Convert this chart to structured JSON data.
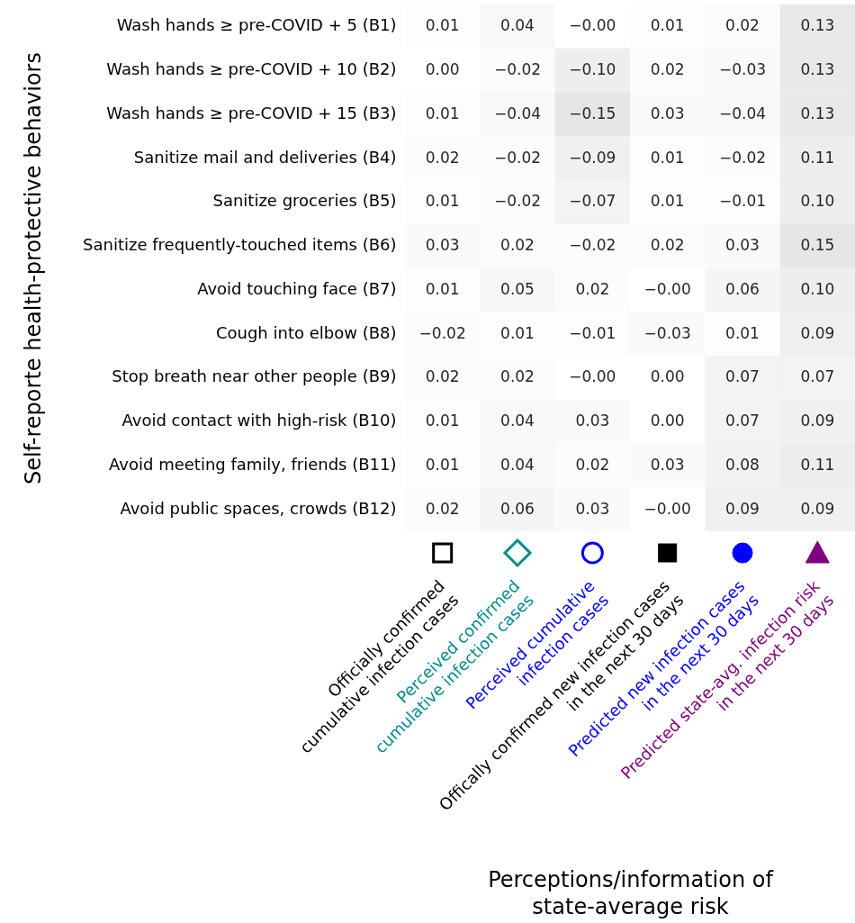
{
  "chart_data": {
    "type": "heatmap",
    "xlabel": "Perceptions/information of\nstate-average risk",
    "ylabel": "Self-reporte health-protective behaviors",
    "categories": [
      "Officially confirmed\ncumulative infection cases",
      "Perceived confirmed\ncumulative infection cases",
      "Perceived cumulative\ninfection cases",
      "Offically confirmed new infection cases\nin the next 30 days",
      "Predicted new infection cases\nin the next 30 days",
      "Predicted state-avg. infection risk\nin the next 30 days"
    ],
    "colors": [
      "#000000",
      "#008b8b",
      "#0000ff",
      "#000000",
      "#0000ff",
      "#800080"
    ],
    "y_categories": [
      "Wash hands ≥ pre-COVID + 5 (B1)",
      "Wash hands ≥ pre-COVID + 10 (B2)",
      "Wash hands ≥ pre-COVID + 15 (B3)",
      "Sanitize mail and deliveries (B4)",
      "Sanitize groceries (B5)",
      "Sanitize frequently-touched items (B6)",
      "Avoid touching face (B7)",
      "Cough into elbow (B8)",
      "Stop breath near other people (B9)",
      "Avoid contact with high-risk (B10)",
      "Avoid meeting family, friends (B11)",
      "Avoid public spaces, crowds (B12)"
    ],
    "cells": [
      [
        0.01,
        0.04,
        0,
        0.01,
        0.02,
        0.13
      ],
      [
        0.0,
        -0.02,
        -0.1,
        0.02,
        -0.03,
        0.13
      ],
      [
        0.01,
        -0.04,
        -0.15,
        0.03,
        -0.04,
        0.13
      ],
      [
        0.02,
        -0.02,
        -0.09,
        0.01,
        -0.02,
        0.11
      ],
      [
        0.01,
        -0.02,
        -0.07,
        0.01,
        -0.01,
        0.1
      ],
      [
        0.03,
        0.02,
        -0.02,
        0.02,
        0.03,
        0.15
      ],
      [
        0.01,
        0.05,
        0.02,
        0,
        0.06,
        0.1
      ],
      [
        -0.02,
        0.01,
        -0.01,
        -0.03,
        0.01,
        0.09
      ],
      [
        0.02,
        0.02,
        0,
        0.0,
        0.07,
        0.07
      ],
      [
        0.01,
        0.04,
        0.03,
        0.0,
        0.07,
        0.09
      ],
      [
        0.01,
        0.04,
        0.02,
        0.03,
        0.08,
        0.11
      ],
      [
        0.02,
        0.06,
        0.03,
        0,
        0.09,
        0.09
      ]
    ],
    "cell_labels": [
      [
        "0.01",
        "0.04",
        "−0.00",
        "0.01",
        "0.02",
        "0.13"
      ],
      [
        "0.00",
        "−0.02",
        "−0.10",
        "0.02",
        "−0.03",
        "0.13"
      ],
      [
        "0.01",
        "−0.04",
        "−0.15",
        "0.03",
        "−0.04",
        "0.13"
      ],
      [
        "0.02",
        "−0.02",
        "−0.09",
        "0.01",
        "−0.02",
        "0.11"
      ],
      [
        "0.01",
        "−0.02",
        "−0.07",
        "0.01",
        "−0.01",
        "0.10"
      ],
      [
        "0.03",
        "0.02",
        "−0.02",
        "0.02",
        "0.03",
        "0.15"
      ],
      [
        "0.01",
        "0.05",
        "0.02",
        "−0.00",
        "0.06",
        "0.10"
      ],
      [
        "−0.02",
        "0.01",
        "−0.01",
        "−0.03",
        "0.01",
        "0.09"
      ],
      [
        "0.02",
        "0.02",
        "−0.00",
        "0.00",
        "0.07",
        "0.07"
      ],
      [
        "0.01",
        "0.04",
        "0.03",
        "0.00",
        "0.07",
        "0.09"
      ],
      [
        "0.01",
        "0.04",
        "0.02",
        "0.03",
        "0.08",
        "0.11"
      ],
      [
        "0.02",
        "0.06",
        "0.03",
        "−0.00",
        "0.09",
        "0.09"
      ]
    ]
  }
}
